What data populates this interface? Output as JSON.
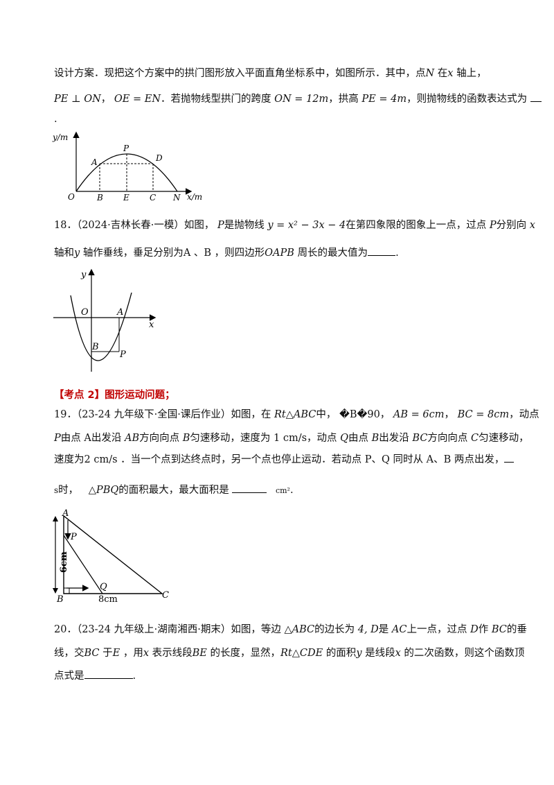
{
  "q17": {
    "line1": "设计方案．现把这个方案中的拱门图形放入平面直角坐标系中，如图所示．其中，点",
    "N": "N",
    "on": "在",
    "x": "x",
    "line1_end": "轴上，",
    "l2_a": "PE ⊥ ON",
    "l2_b": "，",
    "l2_c": "OE = EN",
    "l2_d": "．若抛物线型拱门的跨度",
    "l2_e": "ON = 12m",
    "l2_f": "，拱高",
    "l2_g": "PE = 4m",
    "l2_h": "，则抛物线的函数表达式为",
    "line3": "."
  },
  "fig17": {
    "ylabel": "y/m",
    "xlabel": "x/m",
    "O": "O",
    "A": "A",
    "P": "P",
    "D": "D",
    "B": "B",
    "E": "E",
    "C": "C",
    "N": "N"
  },
  "q18": {
    "num": "18．",
    "src": "（2024·吉林长春·一模）如图，",
    "P": "P",
    "is": "是抛物线",
    "eq": "y = x² − 3x − 4",
    "t1": "在第四象限的图象上一点，过点",
    "P2": "P",
    "t2": "分别向",
    "x": "x",
    "l2_a": "轴和",
    "y": "y",
    "l2_b": "轴作垂线，垂足分别为",
    "A": "A",
    "sep": "、",
    "B": "B",
    "l2_c": "，则四边形",
    "quad": "OAPB",
    "l2_d": "周长的最大值为",
    "l2_e": "."
  },
  "fig18": {
    "y": "y",
    "x": "x",
    "O": "O",
    "A": "A",
    "B": "B",
    "P": "P"
  },
  "section": {
    "label": "【考点 2】图形运动问题；"
  },
  "q19": {
    "num": "19．",
    "src": "（23-24 九年级下·全国·课后作业）如图，在",
    "tri": "Rt△ABC",
    "mid": "中，",
    "garble": "�B�90",
    "c1": "，",
    "ab": "AB = 6cm",
    "c2": "，",
    "bc": "BC = 8cm",
    "end1": "，动点",
    "l2_P": "P",
    "l2_a": "由点",
    "l2_A": "A",
    "l2_b": "出发沿",
    "l2_AB": "AB",
    "l2_c": "方向向点",
    "l2_B": "B",
    "l2_d": "匀速移动，速度为",
    "l2_v1": "1 cm/s",
    "l2_e": "，动点",
    "l2_Q": "Q",
    "l2_f": "由点",
    "l2_B2": "B",
    "l2_g": "出发沿",
    "l2_BC": "BC",
    "l2_h": "方向向点",
    "l2_C": "C",
    "l2_i": "匀速移动，",
    "l3_a": "速度为",
    "l3_v": "2 cm/s",
    "l3_b": "．当一个点到达终点时，另一个点也停止运动．若动点 P、Q 同时从 A、B 两点出发，",
    "l4_s": "s",
    "l4_a": "时，",
    "l4_tri": "△PBQ",
    "l4_b": "的面积最大，最大面积是",
    "l4_unit": "cm²",
    "l4_c": "."
  },
  "fig19": {
    "A": "A",
    "P": "P",
    "B": "B",
    "Q": "Q",
    "C": "C",
    "h": "6cm",
    "w": "8cm"
  },
  "q20": {
    "num": "20．",
    "src": "（23-24 九年级上·湖南湘西·期末）如图，等边",
    "tri": "△ABC",
    "a": "的边长为",
    "len": "4, D",
    "b": "是",
    "AC": "AC",
    "c": "上一点，过点",
    "D": "D",
    "d": "作",
    "BC": "BC",
    "e": "的垂",
    "l2_a": "线，交",
    "l2_BC": "BC",
    "l2_b": "于",
    "l2_E": "E",
    "l2_c": "，用",
    "l2_x": "x",
    "l2_d": "表示线段",
    "l2_BE": "BE",
    "l2_e": "的长度，显然，",
    "l2_tri": "Rt△CDE",
    "l2_f": "的面积",
    "l2_y": "y",
    "l2_g": "是线段",
    "l2_x2": "x",
    "l2_h": "的二次函数，则这个函数顶",
    "l3_a": "点式是",
    "l3_b": "."
  }
}
